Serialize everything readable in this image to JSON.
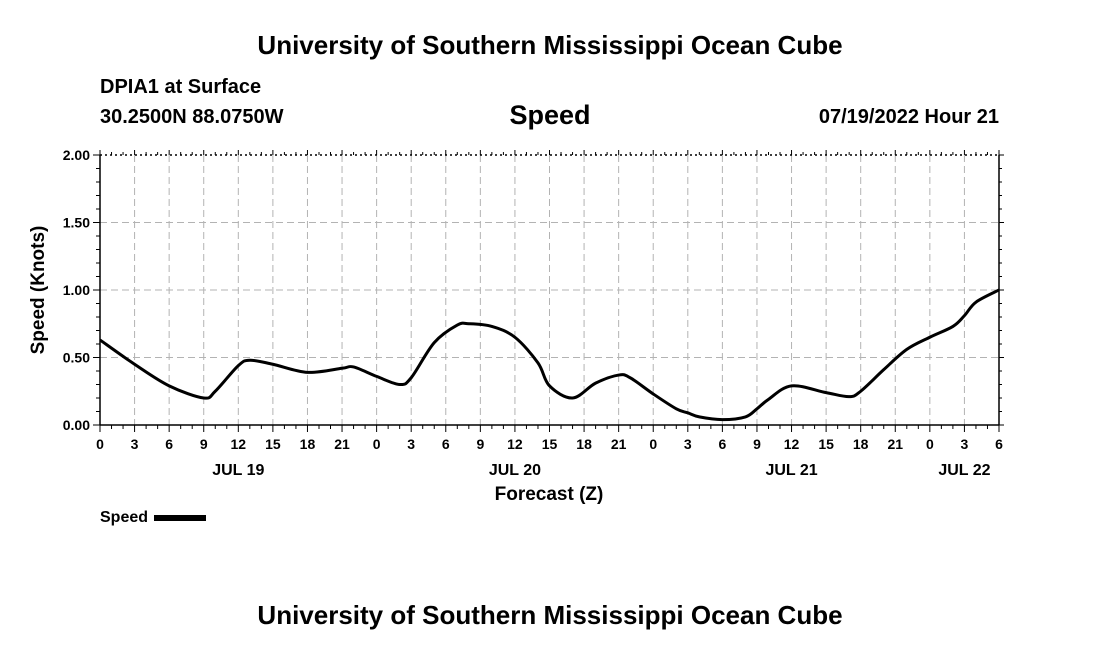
{
  "header": {
    "title": "University of Southern Mississippi Ocean Cube",
    "station": "DPIA1 at Surface",
    "coords": "30.2500N  88.0750W",
    "parameter": "Speed",
    "datetime": "07/19/2022 Hour 21"
  },
  "footer": {
    "title": "University of Southern Mississippi Ocean Cube"
  },
  "legend": {
    "label": "Speed",
    "color": "#000000"
  },
  "chart_data": {
    "type": "line",
    "title": "Speed",
    "xlabel": "Forecast (Z)",
    "ylabel": "Speed (Knots)",
    "ylim": [
      0,
      2
    ],
    "y_ticks": [
      "0.00",
      "0.50",
      "1.00",
      "1.50",
      "2.00"
    ],
    "y_tick_values": [
      0,
      0.5,
      1,
      1.5,
      2
    ],
    "x_tick_labels": [
      "0",
      "3",
      "6",
      "9",
      "12",
      "15",
      "18",
      "21",
      "0",
      "3",
      "6",
      "9",
      "12",
      "15",
      "18",
      "21",
      "0",
      "3",
      "6",
      "9",
      "12",
      "15",
      "18",
      "21",
      "0",
      "3",
      "6"
    ],
    "day_labels": [
      {
        "label": "JUL 19",
        "hour": 12
      },
      {
        "label": "JUL 20",
        "hour": 36
      },
      {
        "label": "JUL 21",
        "hour": 60
      },
      {
        "label": "JUL 22",
        "hour": 75
      }
    ],
    "grid": true,
    "legend_position": "bottom-left",
    "series": [
      {
        "name": "Speed",
        "color": "#000000",
        "x": [
          0,
          3,
          6,
          9,
          10,
          12,
          13,
          15,
          18,
          21,
          22,
          24,
          26,
          27,
          29,
          31,
          32,
          34,
          36,
          38,
          39,
          41,
          43,
          45,
          46,
          48,
          50,
          51,
          52,
          54,
          56,
          57,
          58,
          60,
          63,
          65,
          66,
          68,
          70,
          72,
          74,
          75,
          76,
          78
        ],
        "y": [
          0.63,
          0.45,
          0.29,
          0.2,
          0.25,
          0.44,
          0.48,
          0.45,
          0.39,
          0.42,
          0.43,
          0.36,
          0.3,
          0.35,
          0.61,
          0.74,
          0.75,
          0.73,
          0.65,
          0.46,
          0.29,
          0.2,
          0.31,
          0.37,
          0.35,
          0.23,
          0.12,
          0.09,
          0.06,
          0.04,
          0.06,
          0.12,
          0.19,
          0.29,
          0.24,
          0.21,
          0.25,
          0.41,
          0.56,
          0.65,
          0.73,
          0.81,
          0.91,
          1.0
        ]
      }
    ]
  }
}
